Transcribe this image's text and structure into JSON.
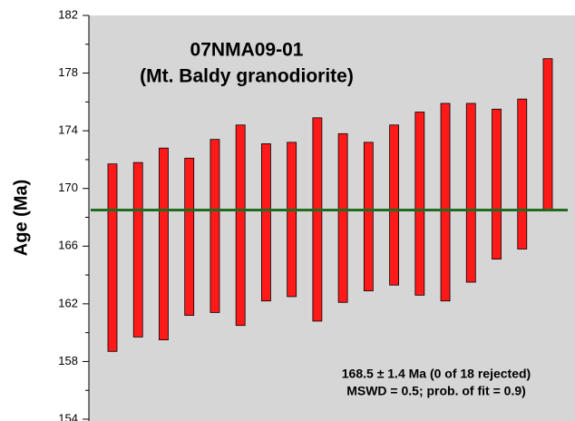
{
  "chart_data": {
    "type": "range-bar",
    "title": [
      "07NMA09-01",
      "(Mt. Baldy granodiorite)"
    ],
    "y_label": "Age (Ma)",
    "annotation": [
      "168.5 ± 1.4 Ma (0 of 18 rejected)",
      "MSWD = 0.5; prob. of fit = 0.9)"
    ],
    "high": [
      171.7,
      171.8,
      172.8,
      172.1,
      173.4,
      174.4,
      173.1,
      173.2,
      174.9,
      173.8,
      173.2,
      174.4,
      175.3,
      175.9,
      175.9,
      175.5,
      176.2,
      179.0
    ],
    "low": [
      158.7,
      159.7,
      159.5,
      161.2,
      161.4,
      160.5,
      162.2,
      162.5,
      160.8,
      162.1,
      162.9,
      163.3,
      162.6,
      162.2,
      163.5,
      165.1,
      165.8,
      168.5
    ],
    "mean": 168.5,
    "color": "#ff1a1a",
    "mean_color": "#1f6b1f",
    "ylim": [
      154,
      182
    ],
    "yticks": [
      154,
      158,
      162,
      166,
      170,
      174,
      178,
      182
    ],
    "minor_yticks": [
      156,
      160,
      164,
      168,
      172,
      176,
      180
    ]
  }
}
